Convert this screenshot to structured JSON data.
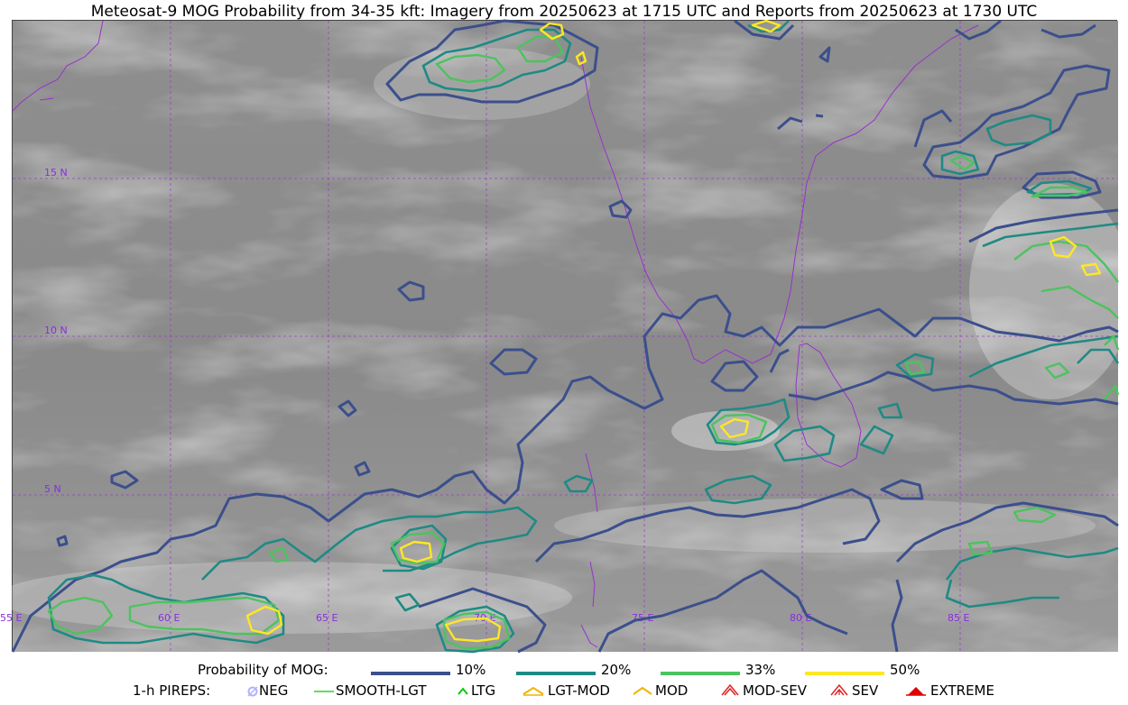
{
  "title": "Meteosat-9 MOG Probability from 34-35 kft: Imagery from 20250623 at 1715 UTC and Reports from 20250623 at 1730 UTC",
  "map": {
    "lat_labels": [
      "15 N",
      "10 N",
      "5 N"
    ],
    "lon_labels": [
      "55 E",
      "60 E",
      "65 E",
      "70 E",
      "75 E",
      "80 E",
      "85 E"
    ],
    "grid_color": "#9932cc",
    "coast_color": "#9932cc"
  },
  "legend": {
    "probability": {
      "heading": "Probability of MOG:",
      "items": [
        {
          "label": "10%",
          "color": "#3b4f8c"
        },
        {
          "label": "20%",
          "color": "#1f8a84"
        },
        {
          "label": "33%",
          "color": "#4cc35e"
        },
        {
          "label": "50%",
          "color": "#fde725"
        }
      ]
    },
    "pireps": {
      "heading": "1-h PIREPS:",
      "items": [
        {
          "label": "NEG",
          "icon": "neg-icon",
          "color": "#b0b0ff"
        },
        {
          "label": "SMOOTH-LGT",
          "icon": "smooth-lgt-icon",
          "color": "#33cc33"
        },
        {
          "label": "LTG",
          "icon": "ltg-icon",
          "color": "#00cc00"
        },
        {
          "label": "LGT-MOD",
          "icon": "lgt-mod-icon",
          "color": "#f0b400"
        },
        {
          "label": "MOD",
          "icon": "mod-icon",
          "color": "#f0b400"
        },
        {
          "label": "MOD-SEV",
          "icon": "mod-sev-icon",
          "color": "#e02020"
        },
        {
          "label": "SEV",
          "icon": "sev-icon",
          "color": "#e02020"
        },
        {
          "label": "EXTREME",
          "icon": "extreme-icon",
          "color": "#e00000"
        }
      ]
    }
  }
}
